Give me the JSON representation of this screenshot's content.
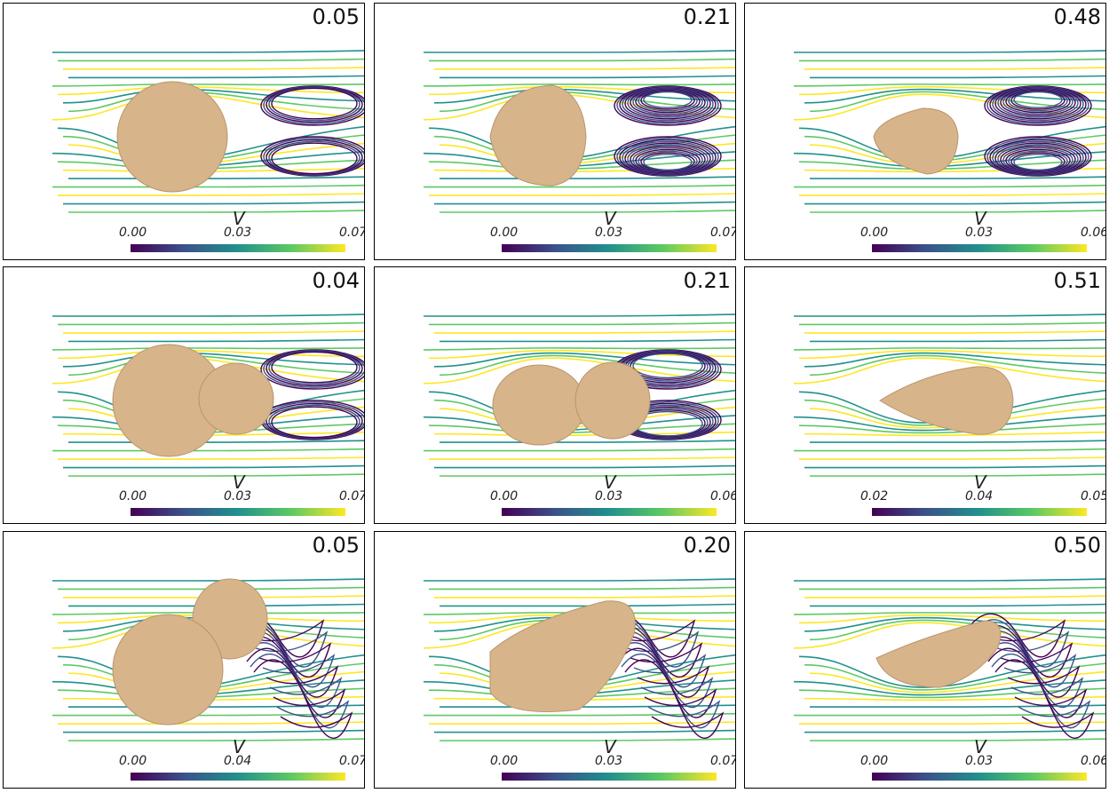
{
  "panels": [
    {
      "value": "0.05",
      "label": "V",
      "ticks": [
        "0.00",
        "0.03",
        "0.07"
      ],
      "shape": "sphere",
      "wake": "ring"
    },
    {
      "value": "0.21",
      "label": "V",
      "ticks": [
        "0.00",
        "0.03",
        "0.07"
      ],
      "shape": "dome",
      "wake": "dense"
    },
    {
      "value": "0.48",
      "label": "V",
      "ticks": [
        "0.00",
        "0.03",
        "0.06"
      ],
      "shape": "cone",
      "wake": "dense"
    },
    {
      "value": "0.04",
      "label": "V",
      "ticks": [
        "0.00",
        "0.03",
        "0.07"
      ],
      "shape": "double",
      "wake": "tangle"
    },
    {
      "value": "0.21",
      "label": "V",
      "ticks": [
        "0.00",
        "0.03",
        "0.06"
      ],
      "shape": "peanut",
      "wake": "rings"
    },
    {
      "value": "0.51",
      "label": "V",
      "ticks": [
        "0.02",
        "0.04",
        "0.05"
      ],
      "shape": "drop",
      "wake": "none"
    },
    {
      "value": "0.05",
      "label": "V",
      "ticks": [
        "0.00",
        "0.04",
        "0.07"
      ],
      "shape": "double-tilt",
      "wake": "loops"
    },
    {
      "value": "0.20",
      "label": "V",
      "ticks": [
        "0.00",
        "0.03",
        "0.07"
      ],
      "shape": "tilt",
      "wake": "loops"
    },
    {
      "value": "0.50",
      "label": "V",
      "ticks": [
        "0.00",
        "0.03",
        "0.06"
      ],
      "shape": "tilt-small",
      "wake": "loops"
    }
  ],
  "colors": {
    "body": "#d8b48a",
    "bodyEdge": "#b8956d",
    "viridis": [
      "#440154",
      "#3b528b",
      "#21918c",
      "#5ec962",
      "#fde725"
    ]
  }
}
